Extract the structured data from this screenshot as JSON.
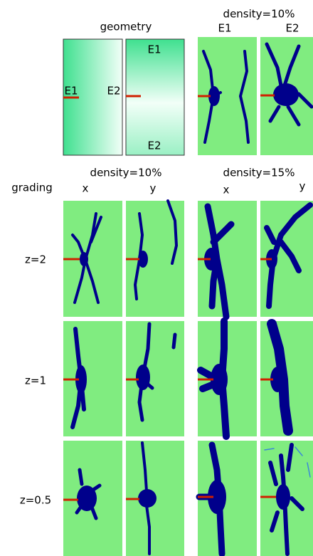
{
  "geometry": {
    "title": "geometry",
    "left_panel": [
      "E1",
      "E2"
    ],
    "right_panel": [
      "E1",
      "E2"
    ]
  },
  "top_right": {
    "title": "density=10%",
    "labels": [
      "E1",
      "E2"
    ]
  },
  "grading": {
    "header": "grading",
    "columns": [
      {
        "title": "density=10%",
        "axes": [
          "x",
          "y"
        ]
      },
      {
        "title": "density=15%",
        "axes": [
          "x",
          "y"
        ]
      }
    ],
    "rows": [
      "z=2",
      "z=1",
      "z=0.5"
    ]
  }
}
